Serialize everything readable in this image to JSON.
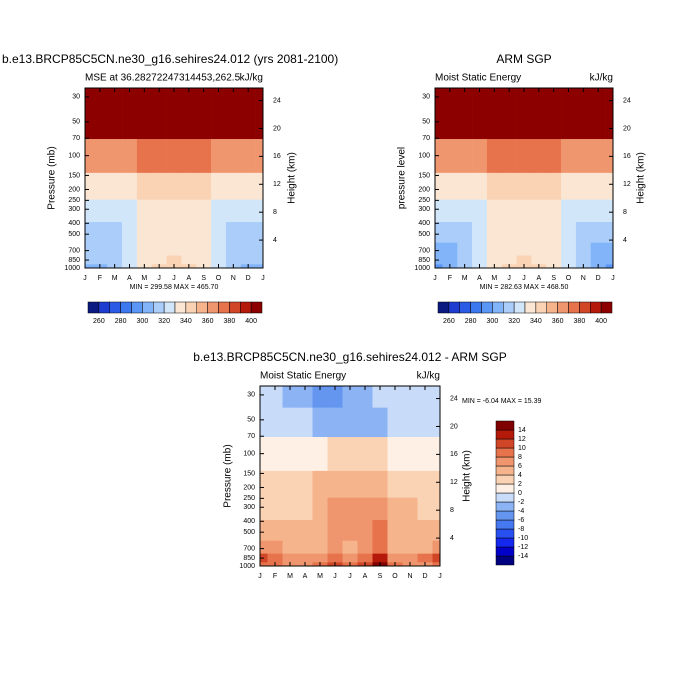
{
  "chart_data": [
    {
      "type": "contour",
      "title": "b.e13.BRCP85C5CN.ne30_g16.sehires24.012 (yrs 2081-2100)",
      "left_string": "MSE at 36.28272247314453,262.5",
      "right_string": "kJ/kg",
      "ylabel": "Pressure (mb)",
      "y2label": "Height (km)",
      "stats": "MIN = 299.58 MAX = 465.70",
      "categories": [
        "J",
        "F",
        "M",
        "A",
        "M",
        "J",
        "J",
        "A",
        "S",
        "O",
        "N",
        "D",
        "J"
      ],
      "y": [
        1000,
        850,
        700,
        500,
        300,
        200,
        100,
        50,
        30
      ],
      "values": [
        [
          308,
          308,
          316,
          326,
          336,
          340,
          342,
          340,
          336,
          326,
          316,
          308,
          308
        ],
        [
          310,
          310,
          316,
          324,
          334,
          338,
          340,
          338,
          334,
          326,
          316,
          310,
          310
        ],
        [
          312,
          312,
          316,
          322,
          332,
          336,
          337,
          336,
          332,
          324,
          316,
          312,
          312
        ],
        [
          315,
          315,
          318,
          324,
          332,
          335,
          335,
          335,
          332,
          325,
          318,
          315,
          315
        ],
        [
          322,
          322,
          324,
          326,
          333,
          336,
          336,
          336,
          333,
          328,
          324,
          322,
          322
        ],
        [
          338,
          338,
          338,
          338,
          340,
          342,
          342,
          342,
          340,
          338,
          338,
          338,
          338
        ],
        [
          365,
          365,
          365,
          368,
          370,
          372,
          372,
          372,
          370,
          368,
          365,
          365,
          365
        ],
        [
          420,
          420,
          420,
          420,
          420,
          420,
          420,
          420,
          420,
          420,
          420,
          420,
          420
        ],
        [
          430,
          430,
          430,
          430,
          430,
          430,
          430,
          430,
          430,
          430,
          430,
          430,
          430
        ]
      ],
      "y_scale": "log",
      "ylim": [
        1000,
        25
      ],
      "yticks": [
        30,
        50,
        70,
        100,
        150,
        200,
        250,
        300,
        400,
        500,
        700,
        850,
        1000
      ],
      "y2lim": [
        0,
        25.8
      ],
      "y2ticks": [
        4,
        8,
        12,
        16,
        20,
        24
      ],
      "levels": [
        260,
        270,
        280,
        290,
        300,
        310,
        320,
        330,
        340,
        350,
        360,
        370,
        380,
        390,
        400
      ],
      "colorbar_ticks": [
        260,
        280,
        300,
        320,
        340,
        360,
        380,
        400
      ],
      "colors": [
        "#0a1a80",
        "#1e3cd0",
        "#2a5ae6",
        "#3c78f0",
        "#5a96f5",
        "#82b4fa",
        "#aacdfa",
        "#d2e6fa",
        "#fae6d2",
        "#fad2b4",
        "#f5b48c",
        "#f0966e",
        "#e6734b",
        "#d24628",
        "#b4190a",
        "#8c0000"
      ],
      "colorbar": "horizontal"
    },
    {
      "type": "contour",
      "title": "ARM SGP",
      "left_string": "Moist Static Energy",
      "right_string": "kJ/kg",
      "ylabel": "pressure level",
      "y2label": "Height (km)",
      "stats": "MIN = 282.63 MAX = 468.50",
      "categories": [
        "J",
        "F",
        "M",
        "A",
        "M",
        "J",
        "J",
        "A",
        "S",
        "O",
        "N",
        "D",
        "J"
      ],
      "y": [
        1000,
        850,
        700,
        500,
        300,
        200,
        100,
        50,
        30
      ],
      "values": [
        [
          298,
          300,
          310,
          322,
          334,
          340,
          342,
          340,
          334,
          322,
          310,
          300,
          298
        ],
        [
          300,
          302,
          312,
          322,
          334,
          338,
          340,
          338,
          334,
          322,
          312,
          302,
          300
        ],
        [
          305,
          306,
          314,
          322,
          330,
          334,
          336,
          334,
          330,
          322,
          314,
          306,
          305
        ],
        [
          312,
          312,
          316,
          322,
          330,
          334,
          335,
          334,
          330,
          322,
          316,
          312,
          312
        ],
        [
          320,
          320,
          322,
          326,
          334,
          337,
          337,
          337,
          334,
          326,
          322,
          320,
          320
        ],
        [
          336,
          336,
          336,
          337,
          340,
          342,
          342,
          342,
          340,
          337,
          336,
          336,
          336
        ],
        [
          365,
          365,
          365,
          367,
          370,
          372,
          372,
          372,
          370,
          367,
          365,
          365,
          365
        ],
        [
          420,
          420,
          420,
          420,
          420,
          420,
          420,
          420,
          420,
          420,
          420,
          420,
          420
        ],
        [
          432,
          432,
          432,
          432,
          432,
          432,
          432,
          432,
          432,
          432,
          432,
          432,
          432
        ]
      ],
      "y_scale": "log",
      "ylim": [
        1000,
        25
      ],
      "yticks": [
        30,
        50,
        70,
        100,
        150,
        200,
        250,
        300,
        400,
        500,
        700,
        850,
        1000
      ],
      "y2lim": [
        0,
        25.8
      ],
      "y2ticks": [
        4,
        8,
        12,
        16,
        20,
        24
      ],
      "levels": [
        260,
        270,
        280,
        290,
        300,
        310,
        320,
        330,
        340,
        350,
        360,
        370,
        380,
        390,
        400
      ],
      "colorbar_ticks": [
        260,
        280,
        300,
        320,
        340,
        360,
        380,
        400
      ],
      "colors": [
        "#0a1a80",
        "#1e3cd0",
        "#2a5ae6",
        "#3c78f0",
        "#5a96f5",
        "#82b4fa",
        "#aacdfa",
        "#d2e6fa",
        "#fae6d2",
        "#fad2b4",
        "#f5b48c",
        "#f0966e",
        "#e6734b",
        "#d24628",
        "#b4190a",
        "#8c0000"
      ],
      "colorbar": "horizontal"
    },
    {
      "type": "contour",
      "title": "b.e13.BRCP85C5CN.ne30_g16.sehires24.012 - ARM SGP",
      "left_string": "Moist Static Energy",
      "right_string": "kJ/kg",
      "ylabel": "Pressure (mb)",
      "y2label": "Height (km)",
      "stats": "MIN =  -6.04 MAX =  15.39",
      "categories": [
        "J",
        "F",
        "M",
        "A",
        "M",
        "J",
        "J",
        "A",
        "S",
        "O",
        "N",
        "D",
        "J"
      ],
      "y": [
        1000,
        850,
        700,
        500,
        300,
        200,
        100,
        50,
        30
      ],
      "values": [
        [
          8,
          8,
          6,
          6,
          8,
          10,
          8,
          10,
          14,
          8,
          6,
          6,
          8
        ],
        [
          10,
          8,
          6,
          6,
          6,
          8,
          6,
          8,
          12,
          6,
          6,
          8,
          10
        ],
        [
          6,
          6,
          4,
          4,
          4,
          6,
          4,
          6,
          8,
          4,
          4,
          4,
          6
        ],
        [
          4,
          4,
          4,
          4,
          4,
          6,
          6,
          6,
          8,
          4,
          4,
          4,
          4
        ],
        [
          2,
          2,
          2,
          2,
          4,
          6,
          6,
          6,
          6,
          4,
          4,
          2,
          2
        ],
        [
          2,
          2,
          2,
          2,
          4,
          4,
          4,
          4,
          4,
          2,
          2,
          2,
          2
        ],
        [
          0,
          0,
          0,
          1,
          1,
          2,
          2,
          2,
          2,
          0,
          0,
          0,
          0
        ],
        [
          -1,
          -1,
          -2,
          -2,
          -4,
          -4,
          -4,
          -3,
          -3,
          -2,
          -1,
          -1,
          -1
        ],
        [
          -1,
          -1,
          -3,
          -4,
          -5,
          -5,
          -4,
          -3,
          -2,
          -1,
          -1,
          -1,
          -1
        ]
      ],
      "y_scale": "log",
      "ylim": [
        1000,
        25
      ],
      "yticks": [
        30,
        50,
        70,
        100,
        150,
        200,
        250,
        300,
        400,
        500,
        700,
        850,
        1000
      ],
      "y2lim": [
        0,
        25.8
      ],
      "y2ticks": [
        4,
        8,
        12,
        16,
        20,
        24
      ],
      "levels": [
        -14,
        -12,
        -10,
        -8,
        -6,
        -4,
        -2,
        0,
        2,
        4,
        6,
        8,
        10,
        12,
        14
      ],
      "colorbar_ticks": [
        -14,
        -12,
        -10,
        -8,
        -6,
        -4,
        -2,
        0,
        2,
        4,
        6,
        8,
        10,
        12,
        14
      ],
      "colors": [
        "#000080",
        "#0000c8",
        "#1428f0",
        "#2850f0",
        "#4678f0",
        "#6496f0",
        "#8cb4f5",
        "#c8dcfa",
        "#fff0e6",
        "#fad2b4",
        "#f5b48c",
        "#f0966e",
        "#e6734b",
        "#d24628",
        "#b4190a",
        "#800000"
      ],
      "colorbar": "vertical"
    }
  ]
}
